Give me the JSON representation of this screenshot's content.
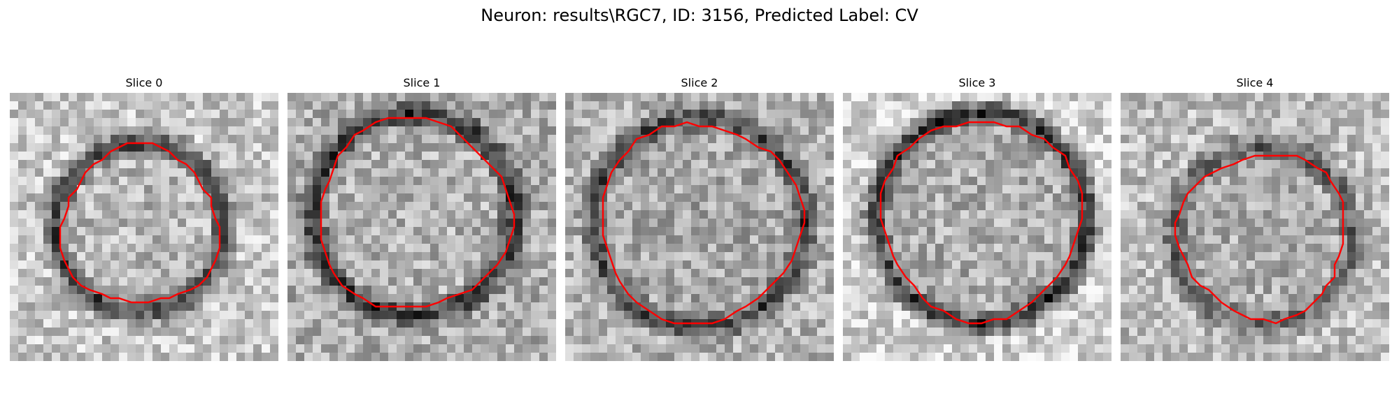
{
  "figure": {
    "title": "Neuron: results\\RGC7, ID: 3156, Predicted Label: CV"
  },
  "contour_color": "#ff0000",
  "slices": [
    {
      "title": "Slice 0",
      "ring_darkness": 0.55,
      "interior_level": 0.72,
      "background_level": 0.78,
      "seed": 11
    },
    {
      "title": "Slice 1",
      "ring_darkness": 0.5,
      "interior_level": 0.7,
      "background_level": 0.68,
      "seed": 23
    },
    {
      "title": "Slice 2",
      "ring_darkness": 0.45,
      "interior_level": 0.66,
      "background_level": 0.7,
      "seed": 37
    },
    {
      "title": "Slice 3",
      "ring_darkness": 0.65,
      "interior_level": 0.68,
      "background_level": 0.82,
      "seed": 41
    },
    {
      "title": "Slice 4",
      "ring_darkness": 0.4,
      "interior_level": 0.68,
      "background_level": 0.74,
      "seed": 53
    }
  ]
}
